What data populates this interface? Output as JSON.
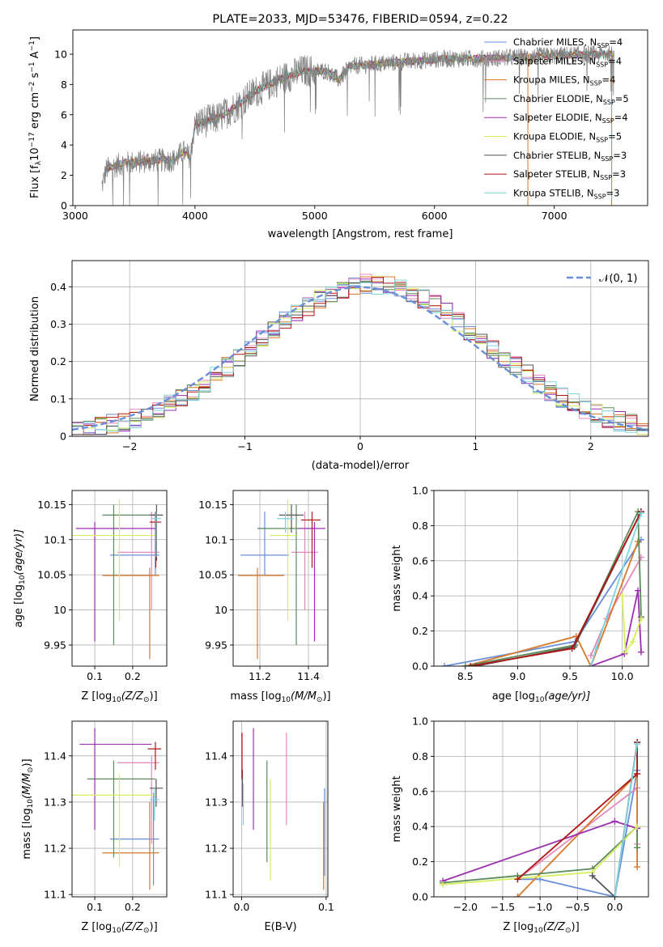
{
  "figure_title": "PLATE=2033, MJD=53476, FIBERID=0594, z=0.22",
  "series_styles": [
    {
      "name": "Chabrier MILES, N$_{SSP}$=4",
      "label_main": "Chabrier MILES, N",
      "label_sub": "SSP",
      "label_tail": "=4",
      "color": "#6a8fd8"
    },
    {
      "name": "Salpeter MILES, N$_{SSP}$=4",
      "label_main": "Salpeter MILES, N",
      "label_sub": "SSP",
      "label_tail": "=4",
      "color": "#e589bd"
    },
    {
      "name": "Kroupa MILES, N$_{SSP}$=4",
      "label_main": "Kroupa MILES, N",
      "label_sub": "SSP",
      "label_tail": "=4",
      "color": "#d8782a"
    },
    {
      "name": "Chabrier ELODIE, N$_{SSP}$=5",
      "label_main": "Chabrier ELODIE, N",
      "label_sub": "SSP",
      "label_tail": "=5",
      "color": "#5b8b5b"
    },
    {
      "name": "Salpeter ELODIE, N$_{SSP}$=4",
      "label_main": "Salpeter ELODIE, N",
      "label_sub": "SSP",
      "label_tail": "=4",
      "color": "#9a2fb0"
    },
    {
      "name": "Kroupa ELODIE, N$_{SSP}$=5",
      "label_main": "Kroupa ELODIE, N",
      "label_sub": "SSP",
      "label_tail": "=5",
      "color": "#d6ee60"
    },
    {
      "name": "Chabrier STELIB, N$_{SSP}$=3",
      "label_main": "Chabrier STELIB, N",
      "label_sub": "SSP",
      "label_tail": "=3",
      "color": "#555555"
    },
    {
      "name": "Salpeter STELIB, N$_{SSP}$=3",
      "label_main": "Salpeter STELIB, N",
      "label_sub": "SSP",
      "label_tail": "=3",
      "color": "#b01515"
    },
    {
      "name": "Kroupa STELIB, N$_{SSP}$=3",
      "label_main": "Kroupa STELIB, N",
      "label_sub": "SSP",
      "label_tail": "=3",
      "color": "#7ed4dc"
    }
  ],
  "chart_data": [
    {
      "id": "spectrum",
      "type": "line",
      "title": "PLATE=2033, MJD=53476, FIBERID=0594, z=0.22",
      "xlabel": "wavelength [Angstrom, rest frame]",
      "ylabel_parts": [
        "Flux [f",
        "λ",
        "10",
        "−17",
        " erg cm",
        "−2",
        " s",
        "−1",
        " A",
        "−1",
        "]"
      ],
      "xlim": [
        2980,
        7780
      ],
      "ylim": [
        0,
        11.6
      ],
      "xticks": [
        3000,
        4000,
        5000,
        6000,
        7000
      ],
      "yticks": [
        0,
        2,
        4,
        6,
        8,
        10
      ],
      "grid": false,
      "legend": "right",
      "observed_color": "#808080",
      "spectrum_range": [
        3220,
        7500
      ],
      "continuum_knots": [
        {
          "x": 3220,
          "y": 1.2
        },
        {
          "x": 3260,
          "y": 2.4
        },
        {
          "x": 3400,
          "y": 2.8
        },
        {
          "x": 3550,
          "y": 2.9
        },
        {
          "x": 3700,
          "y": 3.0
        },
        {
          "x": 3830,
          "y": 3.0
        },
        {
          "x": 3900,
          "y": 3.6
        },
        {
          "x": 3960,
          "y": 3.2
        },
        {
          "x": 4000,
          "y": 5.4
        },
        {
          "x": 4200,
          "y": 5.8
        },
        {
          "x": 4350,
          "y": 6.6
        },
        {
          "x": 4500,
          "y": 7.5
        },
        {
          "x": 4700,
          "y": 8.3
        },
        {
          "x": 4900,
          "y": 8.9
        },
        {
          "x": 5100,
          "y": 8.9
        },
        {
          "x": 5200,
          "y": 8.3
        },
        {
          "x": 5300,
          "y": 9.2
        },
        {
          "x": 5600,
          "y": 9.4
        },
        {
          "x": 5900,
          "y": 9.6
        },
        {
          "x": 6100,
          "y": 9.7
        },
        {
          "x": 6400,
          "y": 9.7
        },
        {
          "x": 6700,
          "y": 9.8
        },
        {
          "x": 7000,
          "y": 9.9
        },
        {
          "x": 7300,
          "y": 10.0
        },
        {
          "x": 7500,
          "y": 10.0
        }
      ]
    },
    {
      "id": "residuals",
      "type": "step",
      "xlabel": "(data-model)/error",
      "ylabel": "Normed distribution",
      "xlim": [
        -2.5,
        2.5
      ],
      "ylim": [
        0,
        0.47
      ],
      "xticks": [
        -2,
        -1,
        0,
        1,
        2
      ],
      "yticks": [
        0.0,
        0.1,
        0.2,
        0.3,
        0.4
      ],
      "grid": true,
      "legend": "top-right",
      "reference_label": "𝒩(0, 1)",
      "reference_color": "#6a8fd8",
      "bin_width": 0.1,
      "bin_start": -2.5,
      "bins": 50
    },
    {
      "id": "age-vs-Z",
      "type": "errorbar",
      "xlabel_parts": [
        "Z [log",
        "10",
        "(Z/Z",
        "⊙",
        ")]"
      ],
      "ylabel_parts": [
        "age  [log",
        "10",
        "(age/yr)]"
      ],
      "xlim": [
        0.04,
        0.29
      ],
      "ylim": [
        9.92,
        10.17
      ],
      "xticks": [
        0.1,
        0.2
      ],
      "xtick_labels": [
        "0.1",
        "0.2"
      ],
      "yticks": [
        9.95,
        10.0,
        10.05,
        10.1,
        10.15
      ],
      "grid": true,
      "points": [
        {
          "x": 0.26,
          "y": 10.078,
          "x0": 0.14,
          "x1": 0.27,
          "y0": 10.05,
          "y1": 10.14
        },
        {
          "x": 0.25,
          "y": 10.082,
          "x0": 0.16,
          "x1": 0.27,
          "y0": 10.0,
          "y1": 10.14
        },
        {
          "x": 0.245,
          "y": 10.049,
          "x0": 0.12,
          "x1": 0.27,
          "y0": 9.93,
          "y1": 10.06
        },
        {
          "x": 0.15,
          "y": 10.135,
          "x0": 0.12,
          "x1": 0.26,
          "y0": 9.95,
          "y1": 10.15
        },
        {
          "x": 0.1,
          "y": 10.116,
          "x0": 0.05,
          "x1": 0.26,
          "y0": 9.955,
          "y1": 10.125
        },
        {
          "x": 0.165,
          "y": 10.106,
          "x0": 0.04,
          "x1": 0.26,
          "y0": 9.985,
          "y1": 10.157
        },
        {
          "x": 0.263,
          "y": 10.135,
          "x0": 0.245,
          "x1": 0.28,
          "y0": 10.07,
          "y1": 10.15
        },
        {
          "x": 0.261,
          "y": 10.125,
          "x0": 0.245,
          "x1": 0.275,
          "y0": 10.06,
          "y1": 10.14
        },
        {
          "x": 0.262,
          "y": 10.13,
          "x0": 0.25,
          "x1": 0.275,
          "y0": 10.075,
          "y1": 10.14
        }
      ]
    },
    {
      "id": "age-vs-mass",
      "type": "errorbar",
      "xlabel_parts": [
        "mass [log",
        "10",
        "(M/M",
        "⊙",
        ")]"
      ],
      "xlim": [
        11.09,
        11.48
      ],
      "ylim": [
        9.92,
        10.17
      ],
      "xticks": [
        11.2,
        11.4
      ],
      "xtick_labels": [
        "11.2",
        "11.4"
      ],
      "yticks": [
        9.95,
        10.0,
        10.05,
        10.1,
        10.15
      ],
      "grid": true,
      "points": [
        {
          "x": 11.22,
          "y": 10.078,
          "x0": 11.12,
          "x1": 11.32,
          "y0": 10.05,
          "y1": 10.14
        },
        {
          "x": 11.385,
          "y": 10.082,
          "x0": 11.33,
          "x1": 11.44,
          "y0": 10.0,
          "y1": 10.14
        },
        {
          "x": 11.19,
          "y": 10.049,
          "x0": 11.11,
          "x1": 11.3,
          "y0": 9.93,
          "y1": 10.06
        },
        {
          "x": 11.35,
          "y": 10.116,
          "x0": 11.19,
          "x1": 11.36,
          "y0": 9.95,
          "y1": 10.15
        },
        {
          "x": 11.425,
          "y": 10.116,
          "x0": 11.36,
          "x1": 11.47,
          "y0": 9.955,
          "y1": 10.125
        },
        {
          "x": 11.315,
          "y": 10.106,
          "x0": 11.24,
          "x1": 11.35,
          "y0": 9.985,
          "y1": 10.157
        },
        {
          "x": 11.33,
          "y": 10.135,
          "x0": 11.28,
          "x1": 11.38,
          "y0": 10.11,
          "y1": 10.15
        },
        {
          "x": 11.415,
          "y": 10.128,
          "x0": 11.37,
          "x1": 11.45,
          "y0": 10.06,
          "y1": 10.14
        },
        {
          "x": 11.305,
          "y": 10.13,
          "x0": 11.27,
          "x1": 11.34,
          "y0": 10.11,
          "y1": 10.14
        }
      ]
    },
    {
      "id": "weight-vs-age",
      "type": "line",
      "xlabel_parts": [
        "age  [log",
        "10",
        "(age/yr)]"
      ],
      "ylabel": "mass weight",
      "xlim": [
        8.2,
        10.25
      ],
      "ylim": [
        0,
        1
      ],
      "xticks": [
        8.5,
        9.0,
        9.5,
        10.0
      ],
      "xtick_labels": [
        "8.5",
        "9.0",
        "9.5",
        "10.0"
      ],
      "yticks": [
        0,
        0.2,
        0.4,
        0.6,
        0.8,
        1.0
      ],
      "ytick_labels": [
        "0.0",
        "0.2",
        "0.4",
        "0.6",
        "0.8",
        "1.0"
      ],
      "grid": true,
      "series": [
        {
          "x": [
            8.3,
            9.55,
            10.18
          ],
          "y": [
            0.0,
            0.14,
            0.72
          ]
        },
        {
          "x": [
            9.7,
            9.85,
            10.18
          ],
          "y": [
            0.06,
            0.27,
            0.62
          ]
        },
        {
          "x": [
            8.5,
            9.56,
            9.7,
            10.15
          ],
          "y": [
            0.0,
            0.17,
            0.0,
            0.71
          ]
        },
        {
          "x": [
            8.5,
            9.55,
            10.15,
            10.18
          ],
          "y": [
            0.0,
            0.12,
            0.88,
            0.28
          ]
        },
        {
          "x": [
            9.7,
            10.02,
            10.15,
            10.18
          ],
          "y": [
            0.0,
            0.07,
            0.43,
            0.08
          ]
        },
        {
          "x": [
            10.0,
            10.03,
            10.1,
            10.18
          ],
          "y": [
            0.4,
            0.08,
            0.14,
            0.27
          ]
        },
        {
          "x": [
            8.6,
            9.54,
            10.18
          ],
          "y": [
            0.0,
            0.11,
            0.88
          ]
        },
        {
          "x": [
            8.55,
            9.52,
            10.18
          ],
          "y": [
            0.0,
            0.1,
            0.88
          ]
        },
        {
          "x": [
            9.7,
            9.75,
            10.18
          ],
          "y": [
            0.0,
            0.1,
            0.87
          ]
        }
      ]
    },
    {
      "id": "mass-vs-Z",
      "type": "errorbar",
      "xlabel_parts": [
        "Z [log",
        "10",
        "(Z/Z",
        "⊙",
        ")]"
      ],
      "ylabel_parts": [
        "mass [log",
        "10",
        "(M/M",
        "⊙",
        ")]"
      ],
      "xlim": [
        0.04,
        0.29
      ],
      "ylim": [
        11.095,
        11.475
      ],
      "xticks": [
        0.1,
        0.2
      ],
      "xtick_labels": [
        "0.1",
        "0.2"
      ],
      "yticks": [
        11.1,
        11.2,
        11.3,
        11.4
      ],
      "grid": true,
      "points": [
        {
          "x": 0.255,
          "y": 11.22,
          "x0": 0.14,
          "x1": 0.27,
          "y0": 11.12,
          "y1": 11.32
        },
        {
          "x": 0.25,
          "y": 11.385,
          "x0": 0.16,
          "x1": 0.27,
          "y0": 11.21,
          "y1": 11.4
        },
        {
          "x": 0.245,
          "y": 11.19,
          "x0": 0.12,
          "x1": 0.27,
          "y0": 11.11,
          "y1": 11.3
        },
        {
          "x": 0.15,
          "y": 11.35,
          "x0": 0.08,
          "x1": 0.26,
          "y0": 11.18,
          "y1": 11.39
        },
        {
          "x": 0.1,
          "y": 11.425,
          "x0": 0.06,
          "x1": 0.25,
          "y0": 11.24,
          "y1": 11.46
        },
        {
          "x": 0.165,
          "y": 11.315,
          "x0": 0.04,
          "x1": 0.26,
          "y0": 11.16,
          "y1": 11.36
        },
        {
          "x": 0.262,
          "y": 11.33,
          "x0": 0.245,
          "x1": 0.28,
          "y0": 11.29,
          "y1": 11.35
        },
        {
          "x": 0.26,
          "y": 11.415,
          "x0": 0.24,
          "x1": 0.275,
          "y0": 11.37,
          "y1": 11.43
        },
        {
          "x": 0.258,
          "y": 11.305,
          "x0": 0.245,
          "x1": 0.27,
          "y0": 11.26,
          "y1": 11.33
        }
      ]
    },
    {
      "id": "mass-vs-ebv",
      "type": "errorbar",
      "xlabel": "E(B-V)",
      "xlim": [
        -0.01,
        0.102
      ],
      "ylim": [
        11.095,
        11.475
      ],
      "xticks": [
        0.0,
        0.1
      ],
      "xtick_labels": [
        "0.0",
        "0.1"
      ],
      "yticks": [
        11.1,
        11.2,
        11.3,
        11.4
      ],
      "grid": true,
      "points": [
        {
          "x": 0.098,
          "y": 11.22,
          "x0": 0.098,
          "x1": 0.098,
          "y0": 11.14,
          "y1": 11.33
        },
        {
          "x": 0.053,
          "y": 11.35,
          "x0": 0.053,
          "x1": 0.053,
          "y0": 11.25,
          "y1": 11.45
        },
        {
          "x": 0.097,
          "y": 11.19,
          "x0": 0.097,
          "x1": 0.097,
          "y0": 11.11,
          "y1": 11.3
        },
        {
          "x": 0.03,
          "y": 11.25,
          "x0": 0.03,
          "x1": 0.03,
          "y0": 11.17,
          "y1": 11.39
        },
        {
          "x": 0.014,
          "y": 11.35,
          "x0": 0.014,
          "x1": 0.014,
          "y0": 11.24,
          "y1": 11.46
        },
        {
          "x": 0.034,
          "y": 11.24,
          "x0": 0.034,
          "x1": 0.034,
          "y0": 11.13,
          "y1": 11.35
        },
        {
          "x": 0.001,
          "y": 11.33,
          "x0": 0.001,
          "x1": 0.001,
          "y0": 11.29,
          "y1": 11.37
        },
        {
          "x": 0.0005,
          "y": 11.4,
          "x0": 0.0005,
          "x1": 0.0005,
          "y0": 11.35,
          "y1": 11.45
        },
        {
          "x": 0.002,
          "y": 11.3,
          "x0": 0.002,
          "x1": 0.002,
          "y0": 11.25,
          "y1": 11.34
        }
      ]
    },
    {
      "id": "weight-vs-Z",
      "type": "line",
      "xlabel_parts": [
        "Z [log",
        "10",
        "(Z/Z",
        "⊙",
        ")]"
      ],
      "ylabel": "mass weight",
      "xlim": [
        -2.42,
        0.45
      ],
      "ylim": [
        0,
        1
      ],
      "xticks": [
        -2.0,
        -1.5,
        -1.0,
        -0.5,
        0.0
      ],
      "xtick_labels": [
        "−2.0",
        "−1.5",
        "−1.0",
        "−0.5",
        "0.0"
      ],
      "yticks": [
        0,
        0.2,
        0.4,
        0.6,
        0.8,
        1.0
      ],
      "ytick_labels": [
        "0.0",
        "0.2",
        "0.4",
        "0.6",
        "0.8",
        "1.0"
      ],
      "grid": true,
      "series": [
        {
          "x": [
            -1.3,
            -1.0,
            0.0,
            0.3,
            0.3
          ],
          "y": [
            0.1,
            0.1,
            0.0,
            0.72,
            0.88
          ]
        },
        {
          "x": [
            -1.3,
            0.3,
            0.3
          ],
          "y": [
            0.1,
            0.62,
            0.3
          ]
        },
        {
          "x": [
            -1.3,
            0.3,
            0.3,
            0.3
          ],
          "y": [
            0.0,
            0.7,
            0.17,
            0.39
          ]
        },
        {
          "x": [
            -2.3,
            -1.3,
            -0.3,
            0.3,
            0.3
          ],
          "y": [
            0.08,
            0.12,
            0.16,
            0.4,
            0.28
          ]
        },
        {
          "x": [
            -2.3,
            0.0,
            0.3
          ],
          "y": [
            0.09,
            0.43,
            0.39
          ]
        },
        {
          "x": [
            -2.3,
            -0.3,
            0.3
          ],
          "y": [
            0.07,
            0.14,
            0.4
          ]
        },
        {
          "x": [
            -0.3,
            0.0,
            0.3
          ],
          "y": [
            0.12,
            0.0,
            0.88
          ]
        },
        {
          "x": [
            -1.3,
            0.3,
            0.3
          ],
          "y": [
            0.1,
            0.7,
            0.88
          ]
        },
        {
          "x": [
            0.0,
            0.3
          ],
          "y": [
            0.0,
            0.87
          ]
        }
      ]
    }
  ]
}
